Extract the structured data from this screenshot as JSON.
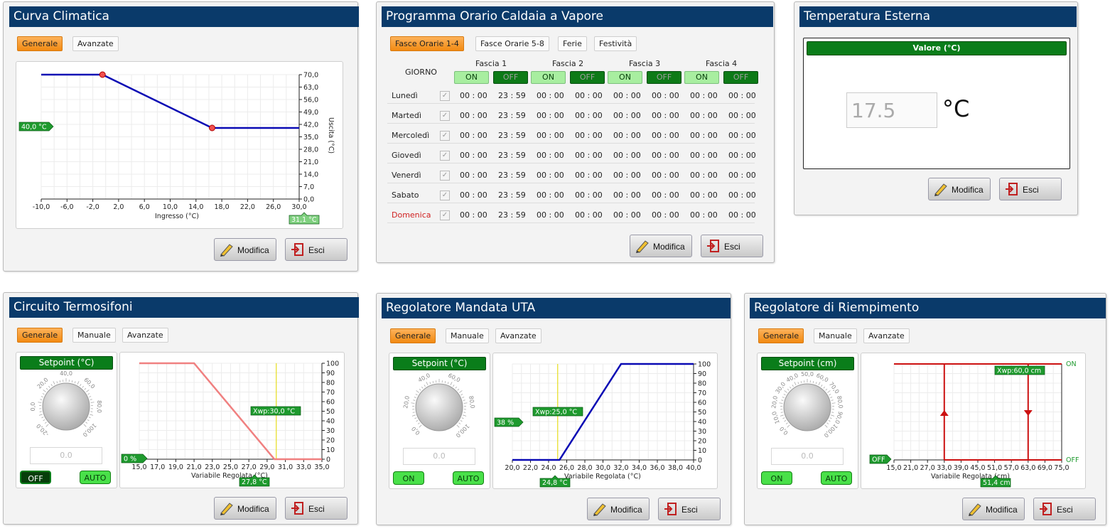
{
  "common": {
    "modifica": "Modifica",
    "esci": "Esci",
    "generale": "Generale",
    "manuale": "Manuale",
    "avanzate": "Avanzate",
    "auto": "AUTO",
    "on": "ON",
    "off": "OFF"
  },
  "colors": {
    "title_bg": "#0a3a6a",
    "accent_orange": "#f28a12",
    "green": "#0a7d1a",
    "line_blue": "#0a0ab4",
    "line_red": "#cc1111",
    "line_pink": "#f08080"
  },
  "curva": {
    "title": "Curva Climatica",
    "xlabel": "Ingresso (°C)",
    "ylabel": "Uscita (°C)",
    "marker_y": "40,0 °C",
    "marker_x": "31,1 °C",
    "xticks": [
      "-10,0",
      "-6,0",
      "-2,0",
      "2,0",
      "6,0",
      "10,0",
      "14,0",
      "18,0",
      "22,0",
      "26,0",
      "30,0"
    ],
    "yticks": [
      "0,0",
      "7,0",
      "14,0",
      "21,0",
      "28,0",
      "35,0",
      "42,0",
      "49,0",
      "56,0",
      "63,0",
      "70,0"
    ]
  },
  "programma": {
    "title": "Programma Orario Caldaia a Vapore",
    "tabs": [
      "Fasce Orarie 1-4",
      "Fasce Orarie 5-8",
      "Ferie",
      "Festività"
    ],
    "giorno": "GIORNO",
    "fasce": [
      "Fascia 1",
      "Fascia 2",
      "Fascia 3",
      "Fascia 4"
    ],
    "days": [
      {
        "name": "Lunedì",
        "times": [
          "00 : 00",
          "23 : 59",
          "00 : 00",
          "00 : 00",
          "00 : 00",
          "00 : 00",
          "00 : 00",
          "00 : 00"
        ]
      },
      {
        "name": "Martedì",
        "times": [
          "00 : 00",
          "23 : 59",
          "00 : 00",
          "00 : 00",
          "00 : 00",
          "00 : 00",
          "00 : 00",
          "00 : 00"
        ]
      },
      {
        "name": "Mercoledì",
        "times": [
          "00 : 00",
          "23 : 59",
          "00 : 00",
          "00 : 00",
          "00 : 00",
          "00 : 00",
          "00 : 00",
          "00 : 00"
        ]
      },
      {
        "name": "Giovedì",
        "times": [
          "00 : 00",
          "23 : 59",
          "00 : 00",
          "00 : 00",
          "00 : 00",
          "00 : 00",
          "00 : 00",
          "00 : 00"
        ]
      },
      {
        "name": "Venerdì",
        "times": [
          "00 : 00",
          "23 : 59",
          "00 : 00",
          "00 : 00",
          "00 : 00",
          "00 : 00",
          "00 : 00",
          "00 : 00"
        ]
      },
      {
        "name": "Sabato",
        "times": [
          "00 : 00",
          "23 : 59",
          "00 : 00",
          "00 : 00",
          "00 : 00",
          "00 : 00",
          "00 : 00",
          "00 : 00"
        ]
      },
      {
        "name": "Domenica",
        "times": [
          "00 : 00",
          "23 : 59",
          "00 : 00",
          "00 : 00",
          "00 : 00",
          "00 : 00",
          "00 : 00",
          "00 : 00"
        ]
      }
    ]
  },
  "temperatura": {
    "title": "Temperatura Esterna",
    "header": "Valore (°C)",
    "value": "17.5",
    "unit": "°C"
  },
  "termosifoni": {
    "title": "Circuito Termosifoni",
    "setpoint_label": "Setpoint (°C)",
    "setpoint_value": "0.0",
    "dial_ticks": [
      "-20,0",
      "0,0",
      "20,0",
      "40,0",
      "60,0",
      "80,0",
      "100,0"
    ],
    "mode_state": "OFF",
    "xlabel": "Variabile Regolata (°C)",
    "xwp": "Xwp:30,0 °C",
    "marker_y": "0 %",
    "marker_x": "27,8 °C",
    "xticks": [
      "15,0",
      "17,0",
      "19,0",
      "21,0",
      "23,0",
      "25,0",
      "27,0",
      "29,0",
      "31,0",
      "33,0",
      "35,0"
    ],
    "yticks": [
      "0",
      "10",
      "20",
      "30",
      "40",
      "50",
      "60",
      "70",
      "80",
      "90",
      "100"
    ]
  },
  "uta": {
    "title": "Regolatore Mandata UTA",
    "setpoint_label": "Setpoint (°C)",
    "setpoint_value": "0.0",
    "dial_ticks": [
      "0,0",
      "20,0",
      "40,0",
      "60,0",
      "80,0",
      "100,0"
    ],
    "mode_state": "ON",
    "xlabel": "Variabile Regolata (°C)",
    "xwp": "Xwp:25,0 °C",
    "marker_y": "38 %",
    "marker_x": "24,8 °C",
    "xticks": [
      "20,0",
      "22,0",
      "24,0",
      "26,0",
      "28,0",
      "30,0",
      "32,0",
      "34,0",
      "36,0",
      "38,0",
      "40,0"
    ],
    "yticks": [
      "0",
      "10",
      "20",
      "30",
      "40",
      "50",
      "60",
      "70",
      "80",
      "90",
      "100"
    ]
  },
  "riempimento": {
    "title": "Regolatore di Riempimento",
    "setpoint_label": "Setpoint (cm)",
    "setpoint_value": "0.0",
    "dial_ticks": [
      "0,0",
      "10,0",
      "20,0",
      "30,0",
      "40,0",
      "50,0",
      "60,0",
      "70,0",
      "80,0",
      "90,0",
      "100,0"
    ],
    "mode_state": "ON",
    "xlabel": "Variabile Regolata (cm)",
    "xwp": "Xwp:60,0 cm",
    "marker_y": "OFF",
    "marker_x": "51,4 cm",
    "xticks": [
      "15,0",
      "21,0",
      "27,0",
      "33,0",
      "39,0",
      "45,0",
      "51,0",
      "57,0",
      "63,0",
      "69,0",
      "75,0"
    ],
    "ytop": "ON",
    "ybot": "OFF"
  },
  "chart_data": [
    {
      "type": "line",
      "name": "curva",
      "x": [
        -10,
        -0.5,
        16.5,
        30
      ],
      "y": [
        70,
        70,
        40,
        40
      ],
      "xlim": [
        -10,
        30
      ],
      "ylim": [
        0,
        70
      ],
      "xlabel": "Ingresso (°C)",
      "ylabel": "Uscita (°C)",
      "grid": true
    },
    {
      "type": "line",
      "name": "termosifoni",
      "x": [
        15,
        21,
        29.8,
        35
      ],
      "y": [
        100,
        100,
        0,
        0
      ],
      "xlim": [
        15,
        35
      ],
      "ylim": [
        0,
        100
      ],
      "xlabel": "Variabile Regolata (°C)",
      "xwp": 30.0,
      "grid": true
    },
    {
      "type": "line",
      "name": "uta",
      "x": [
        20,
        25.2,
        32,
        40
      ],
      "y": [
        0,
        0,
        100,
        100
      ],
      "xlim": [
        20,
        40
      ],
      "ylim": [
        0,
        100
      ],
      "xlabel": "Variabile Regolata (°C)",
      "xwp": 25.0,
      "grid": true
    },
    {
      "type": "line",
      "name": "riempimento",
      "x_on": [
        15,
        63
      ],
      "x_off": [
        33,
        75
      ],
      "switch_up": 33,
      "switch_down": 63,
      "xlim": [
        15,
        75
      ],
      "xlabel": "Variabile Regolata (cm)",
      "grid": true
    }
  ]
}
